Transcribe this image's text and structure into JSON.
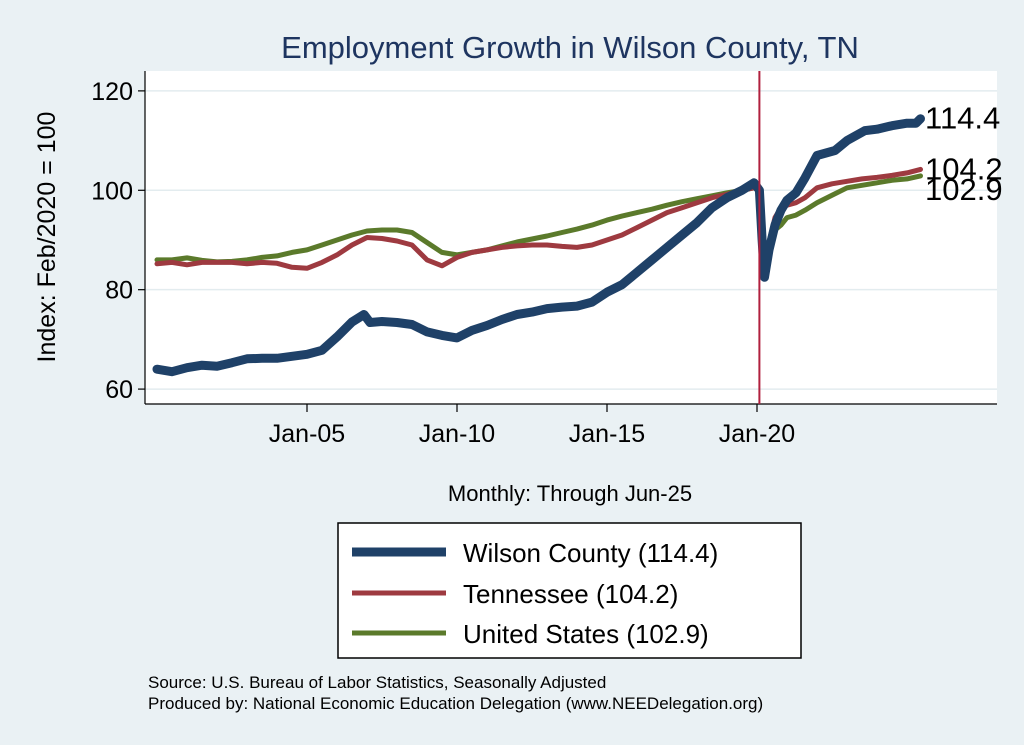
{
  "chart_data": {
    "type": "line",
    "title": "Employment Growth in Wilson  County, TN",
    "ylabel": "Index: Feb/2020 = 100",
    "xlabel": "",
    "note": "Monthly: Through Jun-25",
    "ylim": [
      57,
      124
    ],
    "xlim": [
      1999.6,
      2028.0
    ],
    "yticks": [
      60,
      80,
      100,
      120
    ],
    "xticks": [
      {
        "value": 2005.0,
        "label": "Jan-05"
      },
      {
        "value": 2010.0,
        "label": "Jan-10"
      },
      {
        "value": 2015.0,
        "label": "Jan-15"
      },
      {
        "value": 2020.0,
        "label": "Jan-20"
      }
    ],
    "vline": {
      "x": 2020.08
    },
    "series": [
      {
        "name": "Wilson  County",
        "legend": "Wilson  County (114.4)",
        "end_label": "114.4",
        "color": "#1f4168",
        "x": [
          2000.0,
          2000.5,
          2001.0,
          2001.5,
          2002.0,
          2002.5,
          2003.0,
          2003.5,
          2004.0,
          2004.5,
          2005.0,
          2005.5,
          2006.0,
          2006.5,
          2006.9,
          2007.1,
          2007.5,
          2008.0,
          2008.5,
          2009.0,
          2009.5,
          2010.0,
          2010.5,
          2011.0,
          2011.5,
          2012.0,
          2012.5,
          2013.0,
          2013.5,
          2014.0,
          2014.5,
          2015.0,
          2015.5,
          2016.0,
          2016.5,
          2017.0,
          2017.5,
          2018.0,
          2018.5,
          2019.0,
          2019.5,
          2019.9,
          2020.08,
          2020.17,
          2020.25,
          2020.4,
          2020.6,
          2020.8,
          2021.0,
          2021.3,
          2021.6,
          2022.0,
          2022.3,
          2022.6,
          2023.0,
          2023.3,
          2023.6,
          2024.0,
          2024.5,
          2025.0,
          2025.3,
          2025.45
        ],
        "values": [
          64,
          63.5,
          64.3,
          64.8,
          64.6,
          65.3,
          66.1,
          66.2,
          66.2,
          66.6,
          67.0,
          67.8,
          70.5,
          73.5,
          75.0,
          73.4,
          73.6,
          73.4,
          73.0,
          71.5,
          70.8,
          70.3,
          71.8,
          72.8,
          74.0,
          75.0,
          75.5,
          76.2,
          76.5,
          76.7,
          77.5,
          79.5,
          81.0,
          83.5,
          86.0,
          88.5,
          91.0,
          93.5,
          96.5,
          98.5,
          100.0,
          101.5,
          100.0,
          90.0,
          82.5,
          88.0,
          93.0,
          96.0,
          98.0,
          99.5,
          102.5,
          107.0,
          107.5,
          108.0,
          110.0,
          111.0,
          112.0,
          112.3,
          113.0,
          113.5,
          113.5,
          114.4
        ]
      },
      {
        "name": "Tennessee",
        "legend": "Tennessee (104.2)",
        "end_label": "104.2",
        "color": "#9e3a40",
        "x": [
          2000.0,
          2000.5,
          2001.0,
          2001.5,
          2002.0,
          2002.5,
          2003.0,
          2003.5,
          2004.0,
          2004.5,
          2005.0,
          2005.5,
          2006.0,
          2006.5,
          2007.0,
          2007.5,
          2008.0,
          2008.5,
          2009.0,
          2009.5,
          2010.0,
          2010.5,
          2011.0,
          2011.5,
          2012.0,
          2012.5,
          2013.0,
          2013.5,
          2014.0,
          2014.5,
          2015.0,
          2015.5,
          2016.0,
          2016.5,
          2017.0,
          2017.5,
          2018.0,
          2018.5,
          2019.0,
          2019.5,
          2019.9,
          2020.08,
          2020.17,
          2020.25,
          2020.4,
          2020.6,
          2020.8,
          2021.0,
          2021.3,
          2021.6,
          2022.0,
          2022.5,
          2023.0,
          2023.5,
          2024.0,
          2024.5,
          2025.0,
          2025.45
        ],
        "values": [
          85.2,
          85.5,
          85.0,
          85.5,
          85.5,
          85.5,
          85.2,
          85.5,
          85.3,
          84.5,
          84.3,
          85.5,
          87.0,
          89.0,
          90.5,
          90.3,
          89.8,
          89.0,
          86.0,
          84.8,
          86.5,
          87.5,
          88.0,
          88.5,
          88.8,
          89.0,
          89.0,
          88.7,
          88.5,
          89.0,
          90.0,
          91.0,
          92.5,
          94.0,
          95.5,
          96.5,
          97.5,
          98.5,
          99.2,
          100.0,
          100.5,
          100.0,
          93.0,
          84.5,
          89.5,
          94.5,
          96.5,
          97.0,
          97.5,
          98.5,
          100.5,
          101.3,
          101.8,
          102.3,
          102.6,
          103.0,
          103.5,
          104.2
        ]
      },
      {
        "name": "United States",
        "legend": "United States (102.9)",
        "end_label": "102.9",
        "color": "#5b7a2b",
        "x": [
          2000.0,
          2000.5,
          2001.0,
          2001.5,
          2002.0,
          2002.5,
          2003.0,
          2003.5,
          2004.0,
          2004.5,
          2005.0,
          2005.5,
          2006.0,
          2006.5,
          2007.0,
          2007.5,
          2008.0,
          2008.5,
          2009.0,
          2009.5,
          2010.0,
          2010.5,
          2011.0,
          2011.5,
          2012.0,
          2012.5,
          2013.0,
          2013.5,
          2014.0,
          2014.5,
          2015.0,
          2015.5,
          2016.0,
          2016.5,
          2017.0,
          2017.5,
          2018.0,
          2018.5,
          2019.0,
          2019.5,
          2019.9,
          2020.08,
          2020.17,
          2020.25,
          2020.4,
          2020.6,
          2020.8,
          2021.0,
          2021.3,
          2021.6,
          2022.0,
          2022.5,
          2023.0,
          2023.5,
          2024.0,
          2024.5,
          2025.0,
          2025.45
        ],
        "values": [
          86.0,
          86.0,
          86.4,
          85.9,
          85.6,
          85.7,
          86.0,
          86.5,
          86.8,
          87.5,
          88.0,
          89.0,
          90.0,
          91.0,
          91.8,
          92.0,
          92.0,
          91.5,
          89.5,
          87.5,
          87.0,
          87.5,
          88.0,
          88.8,
          89.6,
          90.2,
          90.8,
          91.5,
          92.2,
          93.0,
          94.0,
          94.8,
          95.5,
          96.2,
          97.0,
          97.7,
          98.3,
          98.9,
          99.5,
          100.0,
          100.5,
          100.0,
          95.0,
          84.0,
          88.0,
          92.0,
          93.0,
          94.5,
          95.0,
          96.0,
          97.5,
          99.0,
          100.5,
          101.0,
          101.5,
          102.0,
          102.3,
          102.9
        ]
      }
    ],
    "legend": {
      "position": "bottom-center"
    }
  },
  "source": {
    "line1": "Source: U.S. Bureau of Labor Statistics, Seasonally Adjusted",
    "line2": "Produced by: National Economic Education Delegation (www.NEEDelegation.org)"
  }
}
